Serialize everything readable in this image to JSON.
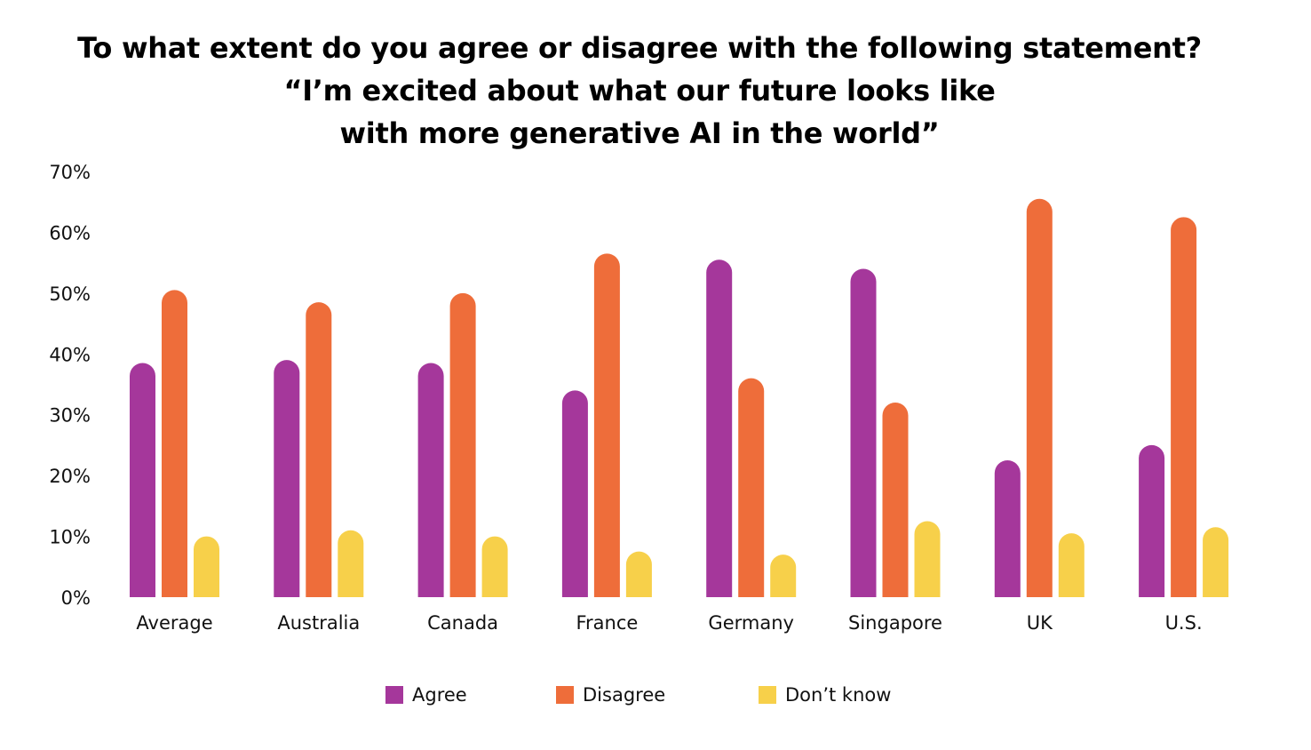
{
  "chart_data": {
    "type": "bar",
    "title_lines": [
      "To what extent do you agree or disagree with the following statement?",
      "“I’m excited about what our future looks like",
      "with more generative AI in the world”"
    ],
    "categories": [
      "Average",
      "Australia",
      "Canada",
      "France",
      "Germany",
      "Singapore",
      "UK",
      "U.S."
    ],
    "series": [
      {
        "name": "Agree",
        "color": "#A5379B",
        "values": [
          38.5,
          39,
          38.5,
          34,
          55.5,
          54,
          22.5,
          25
        ]
      },
      {
        "name": "Disagree",
        "color": "#EE6D3A",
        "values": [
          50.5,
          48.5,
          50,
          56.5,
          36,
          32,
          65.5,
          62.5
        ]
      },
      {
        "name": "Don’t know",
        "color": "#F7D04A",
        "values": [
          10,
          11,
          10,
          7.5,
          7,
          12.5,
          10.5,
          11.5
        ]
      }
    ],
    "yticks": [
      "0%",
      "10%",
      "20%",
      "30%",
      "40%",
      "50%",
      "60%",
      "70%"
    ],
    "ylim": [
      0,
      70
    ],
    "xlabel": "",
    "ylabel": "",
    "grid": false,
    "legend_position": "bottom-center"
  }
}
